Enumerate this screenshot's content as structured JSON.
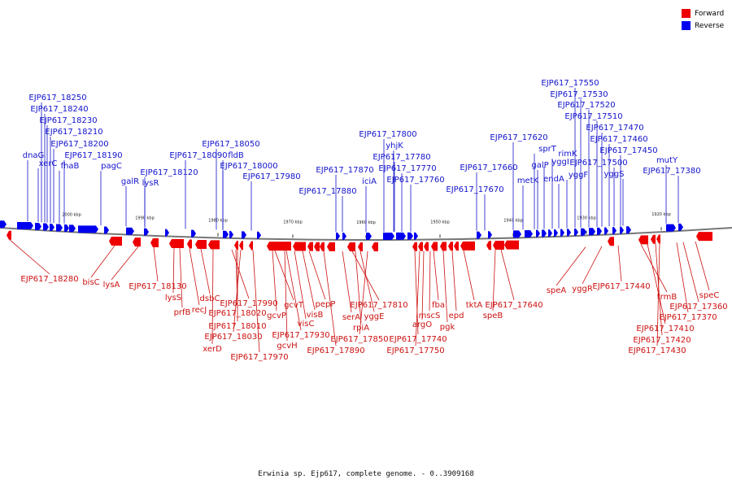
{
  "legend": {
    "forward": "Forward",
    "reverse": "Reverse",
    "forward_color": "#ee0000",
    "reverse_color": "#0000ee"
  },
  "caption": "Erwinia sp. Ejp617, complete genome. - 0..3909168",
  "colors": {
    "forward_gene": "#ee0000",
    "reverse_gene": "#0000ee",
    "forward_label": "#cc1010",
    "reverse_label": "#1212cc",
    "backbone": "#777777"
  },
  "ticks": [
    "2000 kbp",
    "1990 kbp",
    "1980 kbp",
    "1970 kbp",
    "1960 kbp",
    "1950 kbp",
    "1940 kbp",
    "1930 kbp",
    "1920 kbp"
  ],
  "reverse_labels": [
    "EJP617_18250",
    "EJP617_18240",
    "EJP617_18230",
    "EJP617_18210",
    "EJP617_18200",
    "dnaG",
    "EJP617_18190",
    "xerC",
    "fhaB",
    "pagC",
    "galR",
    "EJP617_18120",
    "lysR",
    "EJP617_18090",
    "EJP617_18050",
    "fldB",
    "EJP617_18000",
    "EJP617_17980",
    "EJP617_17870",
    "EJP617_17880",
    "iciA",
    "EJP617_17800",
    "yhjK",
    "EJP617_17780",
    "EJP617_17770",
    "EJP617_17760",
    "EJP617_17660",
    "EJP617_17670",
    "EJP617_17620",
    "metK",
    "sprT",
    "galP",
    "yggI",
    "rimK",
    "endA",
    "yggF",
    "EJP617_17550",
    "EJP617_17530",
    "EJP617_17520",
    "EJP617_17510",
    "EJP617_17470",
    "EJP617_17460",
    "EJP617_17500",
    "EJP617_17450",
    "yggS",
    "mutY",
    "EJP617_17380"
  ],
  "forward_labels": [
    "EJP617_18280",
    "bisC",
    "lysA",
    "EJP617_18130",
    "lysS",
    "prfB",
    "recJ",
    "dsbC",
    "EJP617_17990",
    "EJP617_18020",
    "EJP617_18010",
    "EJP617_18030",
    "xerD",
    "EJP617_17970",
    "gcvP",
    "gcvT",
    "EJP617_17930",
    "visC",
    "gcvH",
    "visB",
    "pepP",
    "EJP617_17890",
    "serA",
    "EJP617_17810",
    "rpiA",
    "yggE",
    "EJP617_17850",
    "EJP617_17740",
    "EJP617_17750",
    "argO",
    "mscS",
    "fba",
    "pgk",
    "epd",
    "tktA",
    "speB",
    "EJP617_17640",
    "speA",
    "yggR",
    "EJP617_17440",
    "trmB",
    "EJP617_17410",
    "EJP617_17420",
    "EJP617_17430",
    "speC",
    "EJP617_17360",
    "EJP617_17370"
  ]
}
